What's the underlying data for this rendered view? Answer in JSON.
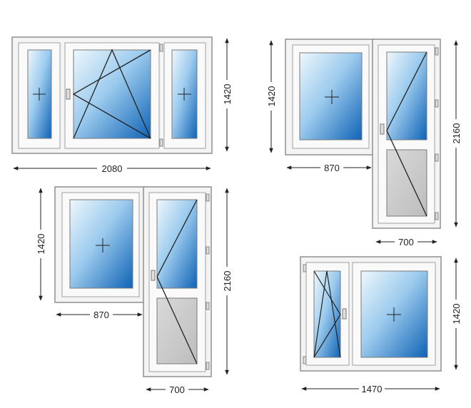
{
  "colors": {
    "frame": "#f4f4f4",
    "frame_stroke": "#9a9a9a",
    "glass_light": "#e6f3fb",
    "glass_dark": "#1f78c8",
    "panel": "#cfcfcf",
    "line": "#222222"
  },
  "icons": [
    "handle-icon",
    "hinge-icon",
    "fixed-pane-cross-icon"
  ],
  "units": [
    {
      "name": "triple-window",
      "width_label": "2080",
      "height_label": "1420"
    },
    {
      "name": "balcony-unit-right",
      "width_label": "870",
      "door_width_label": "700",
      "window_height_label": "1420",
      "door_height_label": "2160"
    },
    {
      "name": "balcony-unit-left",
      "width_label": "870",
      "door_width_label": "700",
      "window_height_label": "1420",
      "door_height_label": "2160"
    },
    {
      "name": "double-window",
      "width_label": "1470",
      "height_label": "1420"
    }
  ]
}
